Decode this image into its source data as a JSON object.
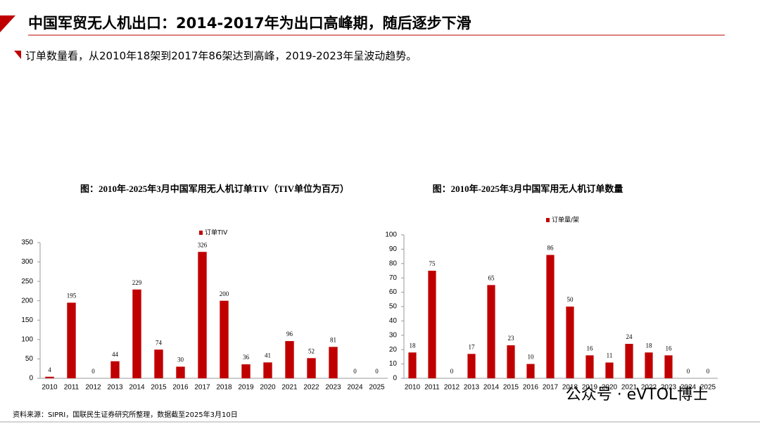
{
  "header": {
    "title": "中国军贸无人机出口：2014-2017年为出口高峰期，随后逐步下滑",
    "subtitle": "订单数量看，从2010年18架到2017年86架达到高峰，2019-2023年呈波动趋势。"
  },
  "source": "资料来源：SIPRI，国联民生证券研究所整理，数据截至2025年3月10日",
  "watermark": "公众号 · eVTOL博士",
  "chart_data": [
    {
      "type": "bar",
      "title": "图：2010年-2025年3月中国军用无人机订单TIV（TIV单位为百万）",
      "categories": [
        "2010",
        "2011",
        "2012",
        "2013",
        "2014",
        "2015",
        "2016",
        "2017",
        "2018",
        "2019",
        "2020",
        "2021",
        "2022",
        "2023",
        "2024",
        "2025"
      ],
      "series": [
        {
          "name": "订单TIV",
          "color": "#c00000",
          "values": [
            4,
            195,
            0,
            44,
            229,
            74,
            30,
            326,
            200,
            36,
            41,
            96,
            52,
            81,
            0,
            0
          ]
        }
      ],
      "ylim": [
        0,
        350
      ],
      "yticks": [
        0,
        50,
        100,
        150,
        200,
        250,
        300,
        350
      ],
      "grid": false,
      "legend": "top"
    },
    {
      "type": "bar",
      "title": "图：2010年-2025年3月中国军用无人机订单数量",
      "categories": [
        "2010",
        "2011",
        "2012",
        "2013",
        "2014",
        "2015",
        "2016",
        "2017",
        "2018",
        "2019",
        "2020",
        "2021",
        "2022",
        "2023",
        "2024",
        "2025"
      ],
      "series": [
        {
          "name": "订单量/架",
          "color": "#c00000",
          "values": [
            18,
            75,
            0,
            17,
            65,
            23,
            10,
            86,
            50,
            16,
            11,
            24,
            18,
            16,
            0,
            0
          ]
        }
      ],
      "ylim": [
        0,
        100
      ],
      "yticks": [
        0,
        10,
        20,
        30,
        40,
        50,
        60,
        70,
        80,
        90,
        100
      ],
      "grid": false,
      "legend": "top"
    }
  ]
}
